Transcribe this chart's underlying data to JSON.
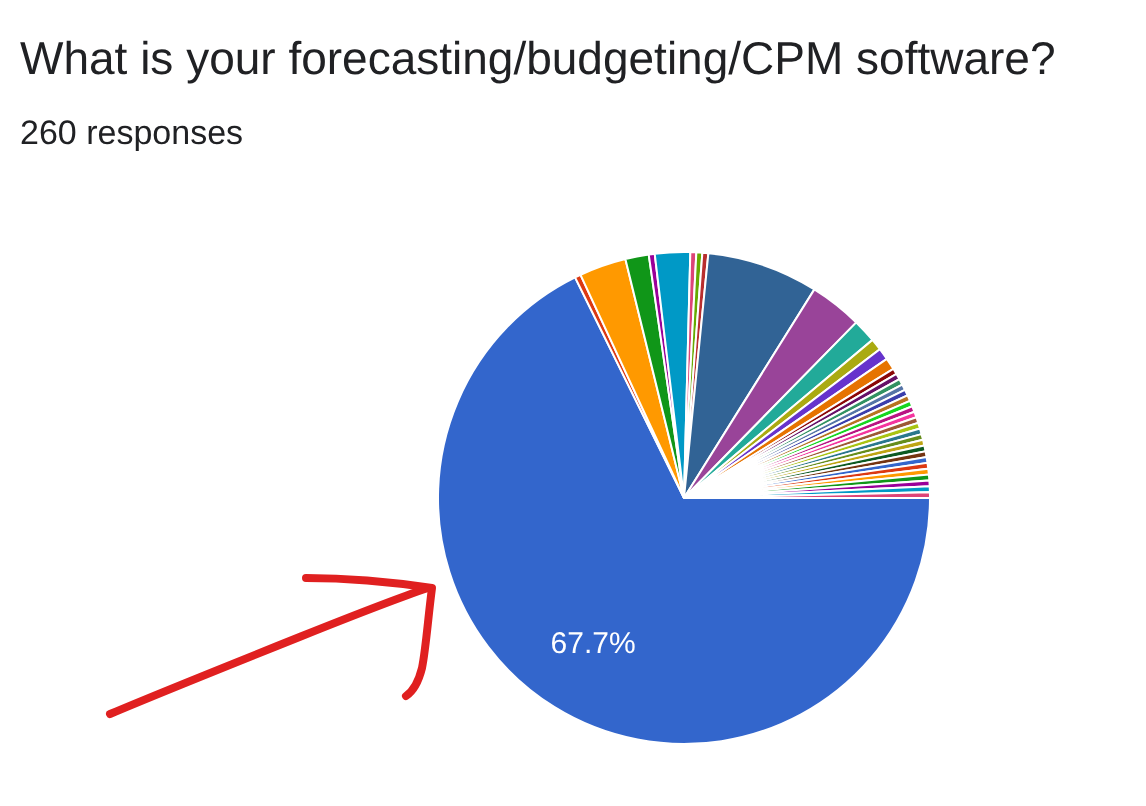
{
  "chart_data": {
    "type": "pie",
    "title": "What is your forecasting/budgeting/CPM software?",
    "subtitle": "260 responses",
    "categories": [
      null,
      null,
      null,
      null,
      null,
      null,
      null,
      null,
      null,
      null,
      null,
      null,
      null,
      null,
      null,
      null,
      null,
      null,
      null,
      null,
      null,
      null,
      null,
      null,
      null,
      null,
      null,
      null,
      null,
      null,
      null,
      null,
      null,
      null,
      null,
      null,
      null,
      null
    ],
    "values": [
      67.7,
      0.39,
      3.08,
      1.54,
      0.39,
      2.31,
      0.39,
      0.39,
      0.39,
      7.31,
      3.46,
      1.54,
      0.77,
      0.77,
      0.77,
      0.39,
      0.39,
      0.39,
      0.39,
      0.39,
      0.39,
      0.38,
      0.38,
      0.38,
      0.38,
      0.38,
      0.38,
      0.38,
      0.38,
      0.38,
      0.38,
      0.38,
      0.38,
      0.38,
      0.38,
      0.38,
      0.38,
      0.38
    ],
    "colors": [
      "#3366cc",
      "#dc3912",
      "#ff9900",
      "#109618",
      "#990099",
      "#0099c6",
      "#dd4477",
      "#66aa00",
      "#b82e2e",
      "#316395",
      "#994499",
      "#22aa99",
      "#aaaa11",
      "#6633cc",
      "#e67300",
      "#8b0707",
      "#651067",
      "#329262",
      "#5574a6",
      "#3b3eac",
      "#b77322",
      "#16d620",
      "#b91383",
      "#f4359e",
      "#9c5935",
      "#a9c413",
      "#2a778d",
      "#668d1c",
      "#bea413",
      "#0c5922",
      "#743411",
      "#3366cc",
      "#dc3912",
      "#ff9900",
      "#109618",
      "#990099",
      "#0099c6",
      "#dd4477"
    ],
    "value_labels": [
      "67.7%",
      null,
      null,
      null,
      null,
      null,
      null,
      null,
      null,
      null,
      null,
      null,
      null,
      null,
      null,
      null,
      null,
      null,
      null,
      null,
      null,
      null,
      null,
      null,
      null,
      null,
      null,
      null,
      null,
      null,
      null,
      null,
      null,
      null,
      null,
      null,
      null,
      null
    ]
  }
}
